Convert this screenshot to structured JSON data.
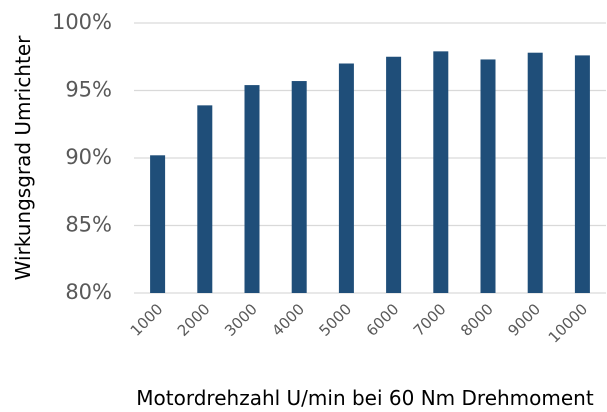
{
  "chart_data": {
    "type": "bar",
    "x_label": "Motordrehzahl U/min bei 60 Nm Drehmoment",
    "y_label": "Wirkungsgrad Umrichter",
    "categories": [
      "1000",
      "2000",
      "3000",
      "4000",
      "5000",
      "6000",
      "7000",
      "8000",
      "9000",
      "10000"
    ],
    "values": [
      90.2,
      93.9,
      95.4,
      95.7,
      97.0,
      97.5,
      97.9,
      97.3,
      97.8,
      97.6
    ],
    "color": "#1f4e79",
    "ylim": [
      80,
      100
    ],
    "yticks": [
      {
        "value": 80,
        "label": "80%"
      },
      {
        "value": 85,
        "label": "85%"
      },
      {
        "value": 90,
        "label": "90%"
      },
      {
        "value": 95,
        "label": "95%"
      },
      {
        "value": 100,
        "label": "100%"
      }
    ],
    "grid": true
  }
}
